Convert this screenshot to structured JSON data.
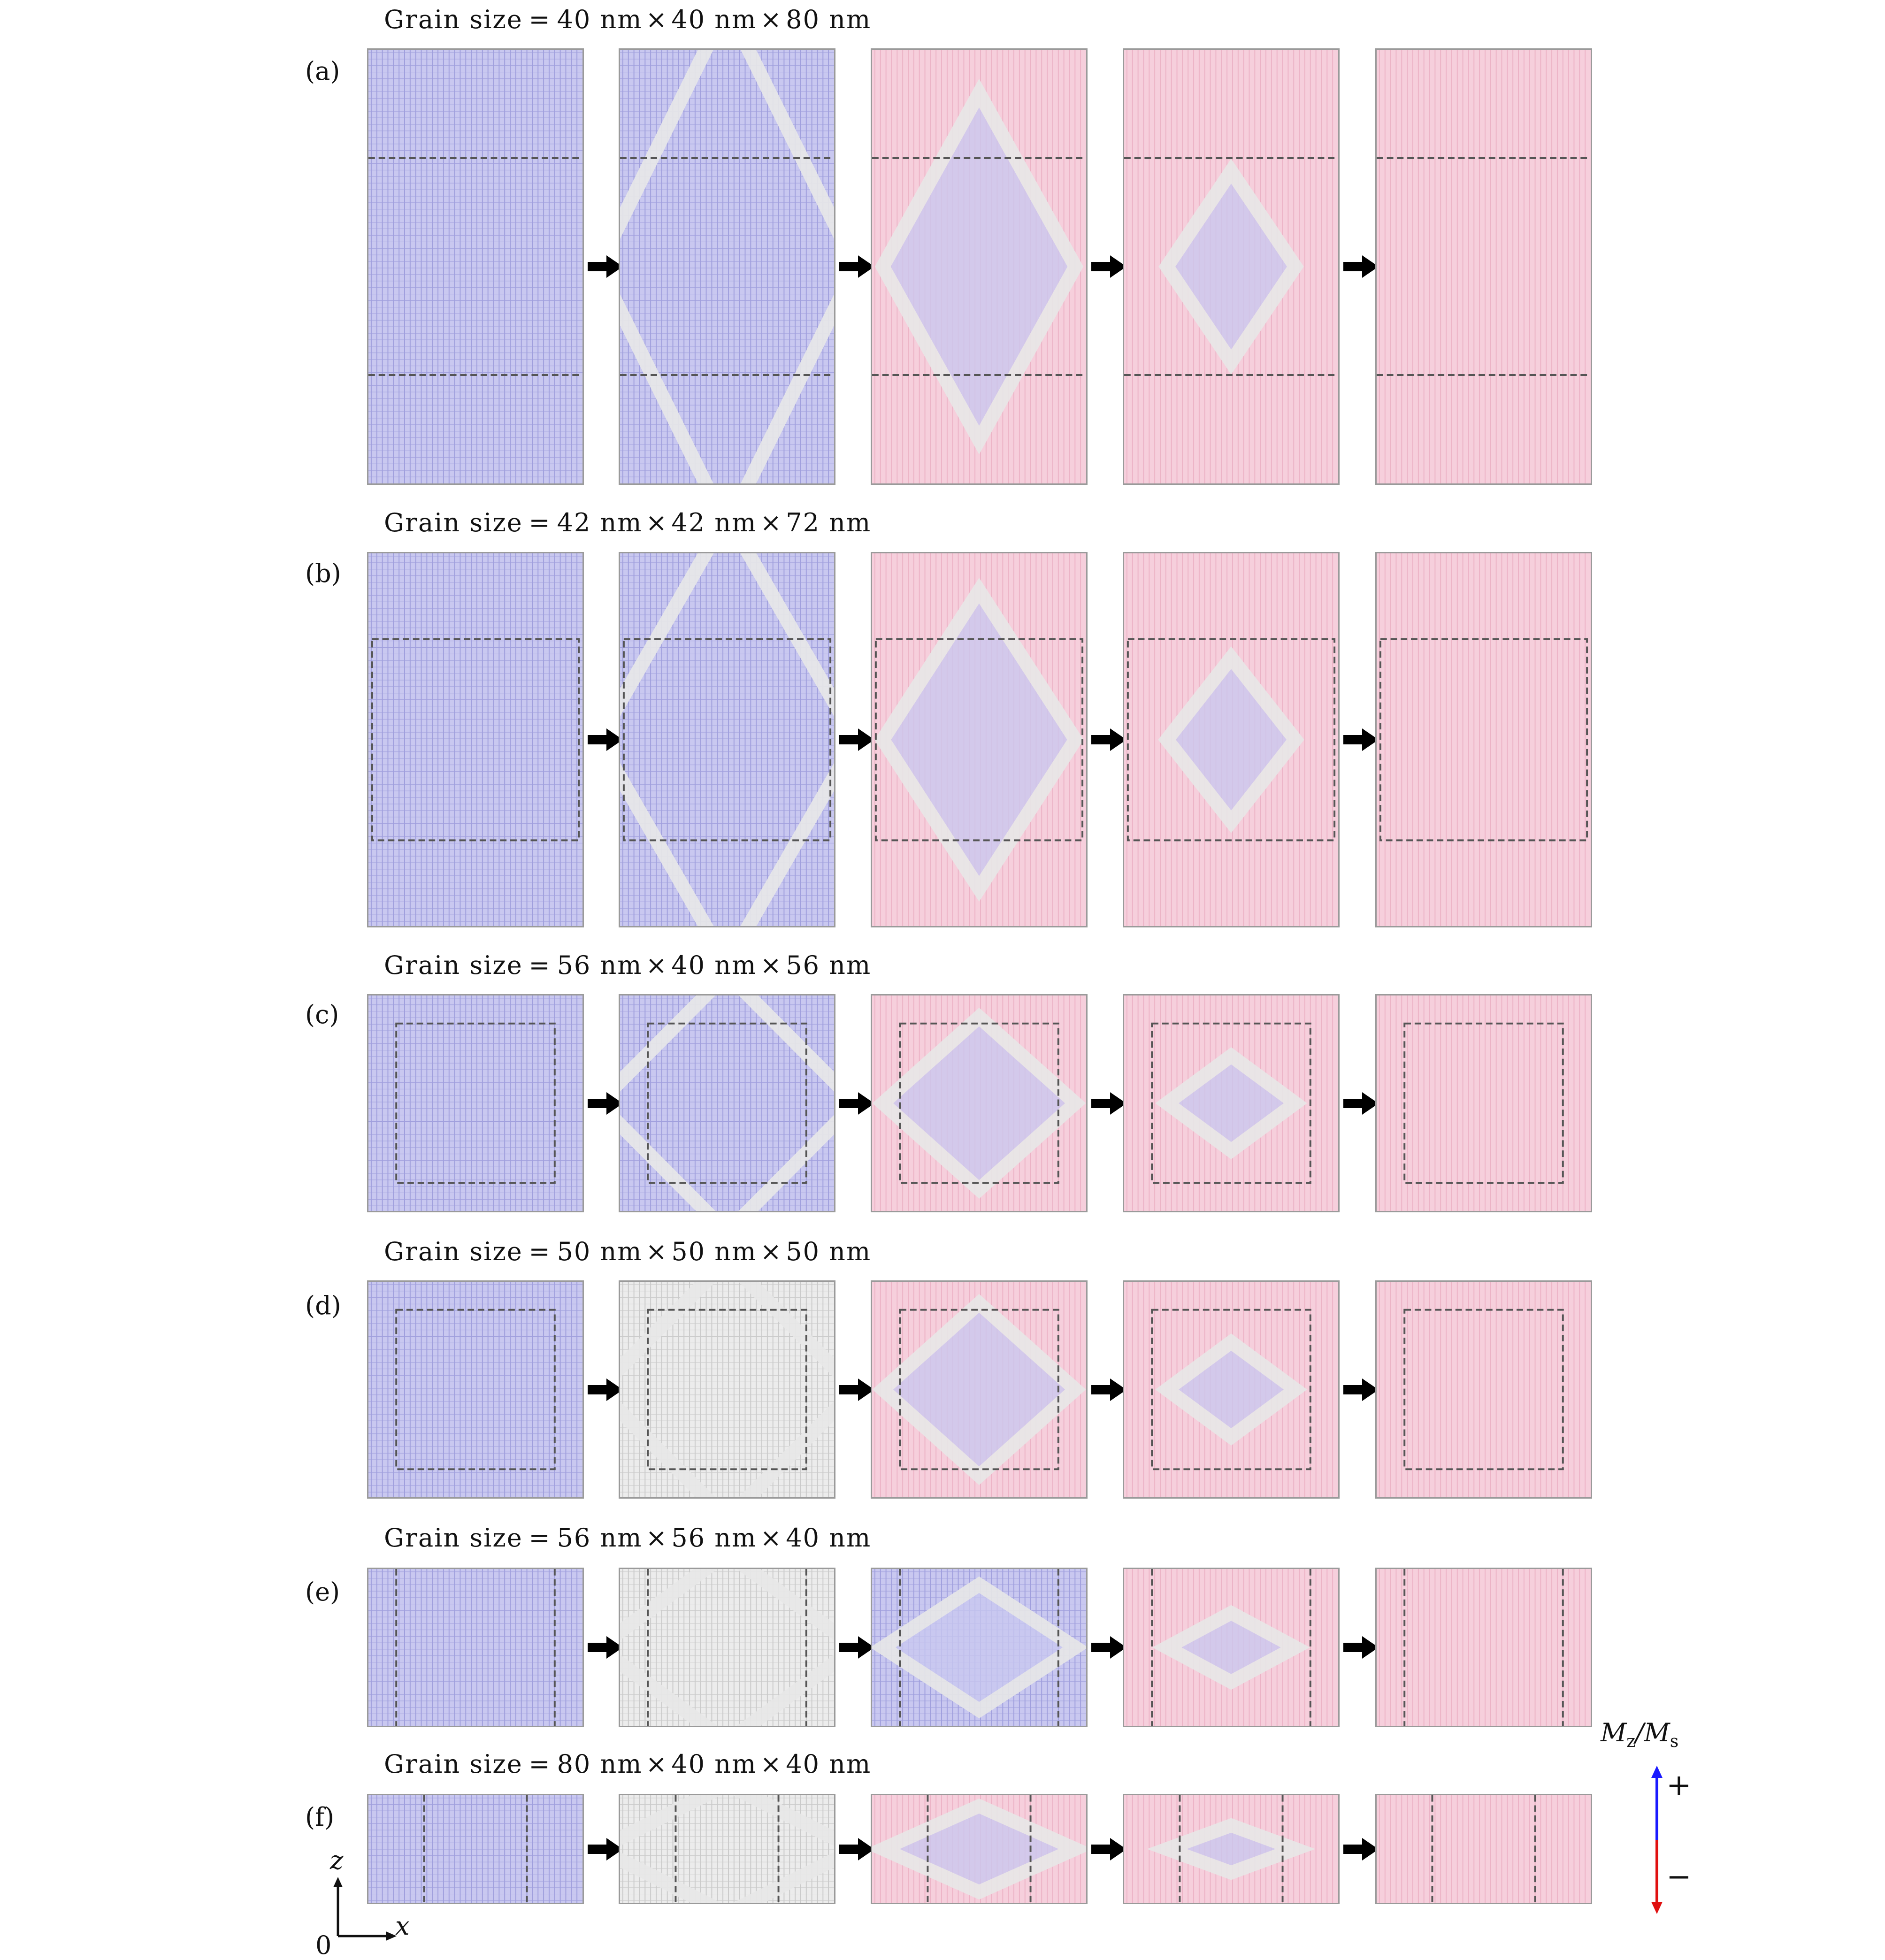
{
  "figure": {
    "rows": [
      {
        "label": "(a)",
        "title": "Grain size = 40 nm × 40 nm × 80 nm",
        "state": [
          "blue",
          "blue",
          "pink",
          "pink",
          "pink"
        ]
      },
      {
        "label": "(b)",
        "title": "Grain size = 42 nm × 42 nm × 72 nm",
        "state": [
          "blue",
          "blue",
          "pink",
          "pink",
          "pink"
        ]
      },
      {
        "label": "(c)",
        "title": "Grain size = 56 nm × 40 nm × 56 nm",
        "state": [
          "blue",
          "blue",
          "pink",
          "pink",
          "pink"
        ]
      },
      {
        "label": "(d)",
        "title": "Grain size = 50 nm × 50 nm × 50 nm",
        "state": [
          "blue",
          "grey",
          "pink",
          "pink",
          "pink"
        ]
      },
      {
        "label": "(e)",
        "title": "Grain size = 56 nm × 56 nm × 40 nm",
        "state": [
          "blue",
          "grey",
          "blue",
          "pink",
          "pink"
        ]
      },
      {
        "label": "(f)",
        "title": "Grain size = 80 nm × 40 nm × 40 nm",
        "state": [
          "blue",
          "grey",
          "pink",
          "pink",
          "pink"
        ]
      }
    ],
    "axes": {
      "z": "z",
      "x": "x",
      "origin": "0"
    },
    "legend": {
      "title": "M_z/M_s",
      "plus": "+",
      "minus": "−",
      "up_color": "#1a1aff",
      "down_color": "#e01010"
    },
    "colors": {
      "blue": "#c9c8f0",
      "pink": "#f6cfdc",
      "grey": "#ececec",
      "grid_blue": "#8f8fd6",
      "grid_pink": "#e9a8bd",
      "dash": "#555555"
    }
  }
}
